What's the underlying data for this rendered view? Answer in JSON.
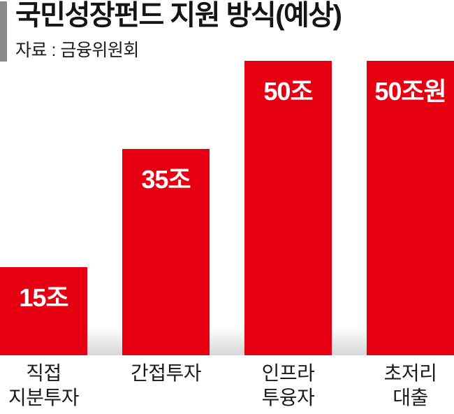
{
  "header": {
    "title": "국민성장펀드 지원 방식(예상)",
    "source": "자료 : 금융위원회"
  },
  "chart_data": {
    "type": "bar",
    "title": "국민성장펀드 지원 방식(예상)",
    "source": "자료 : 금융위원회",
    "categories": [
      "직접 지분투자",
      "간접투자",
      "인프라 투융자",
      "초저리 대출"
    ],
    "category_lines": [
      [
        "직접",
        "지분투자"
      ],
      [
        "간접투자"
      ],
      [
        "인프라",
        "투융자"
      ],
      [
        "초저리",
        "대출"
      ]
    ],
    "values": [
      15,
      35,
      50,
      50
    ],
    "value_labels": [
      "15조",
      "35조",
      "50조",
      "50조원"
    ],
    "ylim": [
      0,
      50
    ],
    "grid": false,
    "legend": false,
    "bar_color": "#e60012",
    "value_label_color": "#ffffff"
  },
  "colors": {
    "bar_red": "#e60012",
    "accent_gray": "#8a8a8a",
    "text_black": "#171310",
    "baseline_shade": "#d7d7d7"
  }
}
